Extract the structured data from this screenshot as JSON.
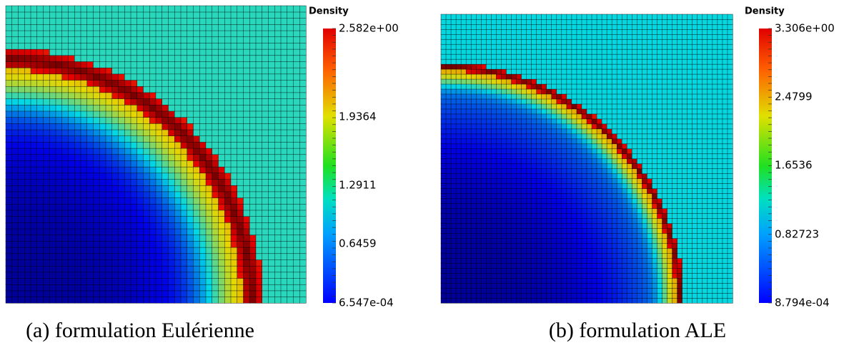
{
  "panels": [
    {
      "colorbar": {
        "title": "Density",
        "ticks": [
          "2.582e+00",
          "1.9364",
          "1.2911",
          "0.6459",
          "6.547e-04"
        ]
      },
      "caption": "(a) formulation Eulérienne"
    },
    {
      "colorbar": {
        "title": "Density",
        "ticks": [
          "3.306e+00",
          "2.4799",
          "1.6536",
          "0.82723",
          "8.794e-04"
        ]
      },
      "caption": "(b) formulation ALE"
    }
  ]
}
